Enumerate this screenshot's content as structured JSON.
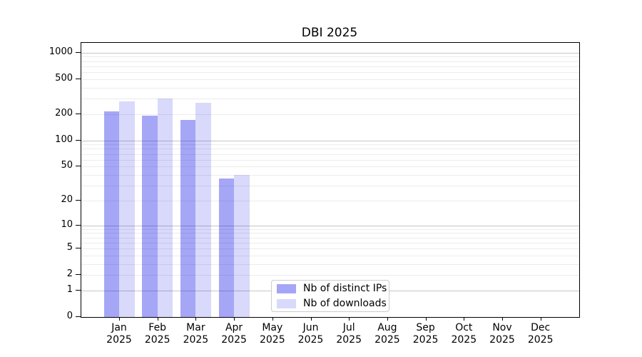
{
  "chart_data": {
    "type": "bar",
    "title": "DBI 2025",
    "categories": [
      {
        "month": "Jan",
        "year": "2025"
      },
      {
        "month": "Feb",
        "year": "2025"
      },
      {
        "month": "Mar",
        "year": "2025"
      },
      {
        "month": "Apr",
        "year": "2025"
      },
      {
        "month": "May",
        "year": "2025"
      },
      {
        "month": "Jun",
        "year": "2025"
      },
      {
        "month": "Jul",
        "year": "2025"
      },
      {
        "month": "Aug",
        "year": "2025"
      },
      {
        "month": "Sep",
        "year": "2025"
      },
      {
        "month": "Oct",
        "year": "2025"
      },
      {
        "month": "Nov",
        "year": "2025"
      },
      {
        "month": "Dec",
        "year": "2025"
      }
    ],
    "series": [
      {
        "name": "Nb of distinct IPs",
        "color": "#0000e6",
        "alpha": 0.35,
        "values": [
          213,
          191,
          170,
          36,
          0,
          0,
          0,
          0,
          0,
          0,
          0,
          0
        ]
      },
      {
        "name": "Nb of downloads",
        "color": "#0000e6",
        "alpha": 0.15,
        "values": [
          278,
          300,
          268,
          40,
          0,
          0,
          0,
          0,
          0,
          0,
          0,
          0
        ]
      }
    ],
    "yticks": [
      0,
      1,
      2,
      5,
      10,
      20,
      50,
      100,
      200,
      500,
      1000
    ],
    "yscale": "log1p",
    "ylim": [
      0,
      1290
    ],
    "xlabel": "",
    "ylabel": "",
    "grid": "on",
    "legend_position": "lower center inside",
    "colors": {
      "grid_major": "#c6c6c6",
      "grid_minor": "#ececec",
      "axis": "#000000",
      "background": "#ffffff"
    }
  }
}
